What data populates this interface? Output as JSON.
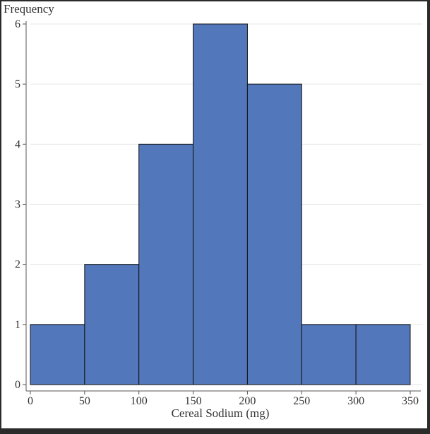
{
  "chart_data": {
    "type": "bar",
    "title": "",
    "xlabel": "Cereal Sodium (mg)",
    "ylabel": "Frequency",
    "bins": [
      {
        "start": 0,
        "end": 50,
        "count": 1
      },
      {
        "start": 50,
        "end": 100,
        "count": 2
      },
      {
        "start": 100,
        "end": 150,
        "count": 4
      },
      {
        "start": 150,
        "end": 200,
        "count": 6
      },
      {
        "start": 200,
        "end": 250,
        "count": 5
      },
      {
        "start": 250,
        "end": 300,
        "count": 1
      },
      {
        "start": 300,
        "end": 350,
        "count": 1
      }
    ],
    "xlim": [
      0,
      350
    ],
    "ylim": [
      0,
      6
    ],
    "xticks": [
      "0",
      "50",
      "100",
      "150",
      "200",
      "250",
      "300",
      "350"
    ],
    "yticks": [
      "0",
      "1",
      "2",
      "3",
      "4",
      "5",
      "6"
    ],
    "grid": true,
    "colors": {
      "bar": "#5277bb",
      "bar_edge": "#111111",
      "grid": "#e6e6e6"
    }
  }
}
